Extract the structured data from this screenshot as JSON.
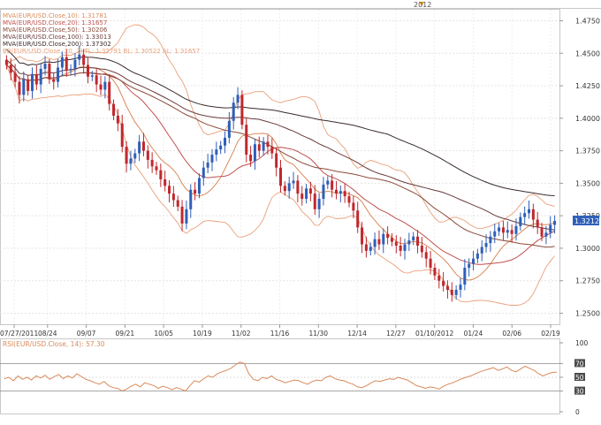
{
  "year_marker": "2012",
  "chart_data": [
    {
      "type": "candlestick",
      "instrument": "EUR/USD",
      "legend": [
        {
          "label": "MVA(EUR/USD.Close,10): 1.31781",
          "color": "#d98a5a"
        },
        {
          "label": "MVA(EUR/USD.Close,20): 1.31657",
          "color": "#c0504d"
        },
        {
          "label": "MVA(EUR/USD.Close,50): 1.30206",
          "color": "#8b4a3a"
        },
        {
          "label": "MVA(EUR/USD.Close,100): 1.33013",
          "color": "#6b3b3b"
        },
        {
          "label": "MVA(EUR/USD.Close,200): 1.37302",
          "color": "#3a2a2a"
        },
        {
          "label": "BB(EUR/USD.Close, 20, 2)   TL: 1.32791  BL: 1.30522  AL: 1.31657",
          "color": "#e9a07a"
        }
      ],
      "x_labels": [
        "07/27/2011",
        "08/24",
        "09/07",
        "09/21",
        "10/05",
        "10/19",
        "11/02",
        "11/16",
        "11/30",
        "12/14",
        "12/27",
        "01/10/2012",
        "01/24",
        "02/06",
        "02/19"
      ],
      "y_ticks": [
        "1.4750",
        "1.4500",
        "1.4250",
        "1.4000",
        "1.3750",
        "1.3500",
        "1.3250",
        "1.3000",
        "1.2750",
        "1.2500"
      ],
      "ylim": [
        1.2415,
        1.4835
      ],
      "last_price": "1.32120",
      "closes": [
        1.441,
        1.435,
        1.428,
        1.418,
        1.43,
        1.421,
        1.434,
        1.426,
        1.438,
        1.442,
        1.43,
        1.428,
        1.439,
        1.447,
        1.437,
        1.438,
        1.445,
        1.449,
        1.441,
        1.432,
        1.433,
        1.426,
        1.422,
        1.428,
        1.411,
        1.402,
        1.396,
        1.378,
        1.365,
        1.369,
        1.373,
        1.382,
        1.375,
        1.368,
        1.363,
        1.36,
        1.353,
        1.348,
        1.342,
        1.337,
        1.332,
        1.319,
        1.33,
        1.345,
        1.342,
        1.354,
        1.362,
        1.366,
        1.372,
        1.376,
        1.379,
        1.385,
        1.398,
        1.412,
        1.418,
        1.395,
        1.372,
        1.367,
        1.38,
        1.375,
        1.382,
        1.378,
        1.373,
        1.362,
        1.348,
        1.344,
        1.35,
        1.352,
        1.342,
        1.338,
        1.346,
        1.342,
        1.33,
        1.338,
        1.349,
        1.352,
        1.345,
        1.342,
        1.344,
        1.34,
        1.335,
        1.329,
        1.316,
        1.303,
        1.298,
        1.301,
        1.307,
        1.303,
        1.311,
        1.308,
        1.305,
        1.302,
        1.298,
        1.303,
        1.306,
        1.309,
        1.302,
        1.297,
        1.292,
        1.285,
        1.279,
        1.275,
        1.271,
        1.268,
        1.264,
        1.268,
        1.272,
        1.285,
        1.288,
        1.292,
        1.296,
        1.301,
        1.304,
        1.309,
        1.313,
        1.316,
        1.312,
        1.314,
        1.311,
        1.317,
        1.324,
        1.327,
        1.33,
        1.322,
        1.316,
        1.309,
        1.312,
        1.318,
        1.321
      ]
    },
    {
      "type": "line",
      "name": "RSI(EUR/USD.Close, 14): 57.30",
      "color": "#d98a5a",
      "y_ticks": [
        "100",
        "70",
        "50",
        "30",
        "0"
      ],
      "ylim": [
        0,
        100
      ],
      "guides": [
        70,
        30
      ],
      "last_value": "57.30",
      "values": [
        48,
        50,
        45,
        52,
        47,
        50,
        46,
        52,
        49,
        53,
        47,
        51,
        54,
        48,
        52,
        49,
        55,
        51,
        47,
        45,
        42,
        40,
        44,
        38,
        35,
        34,
        30,
        33,
        37,
        40,
        36,
        42,
        40,
        38,
        34,
        37,
        35,
        32,
        35,
        33,
        30,
        38,
        45,
        43,
        48,
        52,
        50,
        55,
        58,
        60,
        63,
        68,
        72,
        70,
        55,
        47,
        45,
        50,
        48,
        52,
        47,
        45,
        42,
        44,
        46,
        45,
        42,
        40,
        44,
        46,
        45,
        50,
        52,
        48,
        46,
        45,
        42,
        40,
        36,
        35,
        38,
        42,
        45,
        44,
        46,
        48,
        47,
        50,
        48,
        46,
        42,
        38,
        36,
        34,
        36,
        35,
        33,
        37,
        40,
        42,
        45,
        48,
        50,
        52,
        55,
        58,
        60,
        62,
        64,
        60,
        62,
        65,
        60,
        58,
        62,
        66,
        63,
        60,
        55,
        52,
        55,
        57,
        57.3
      ]
    }
  ]
}
